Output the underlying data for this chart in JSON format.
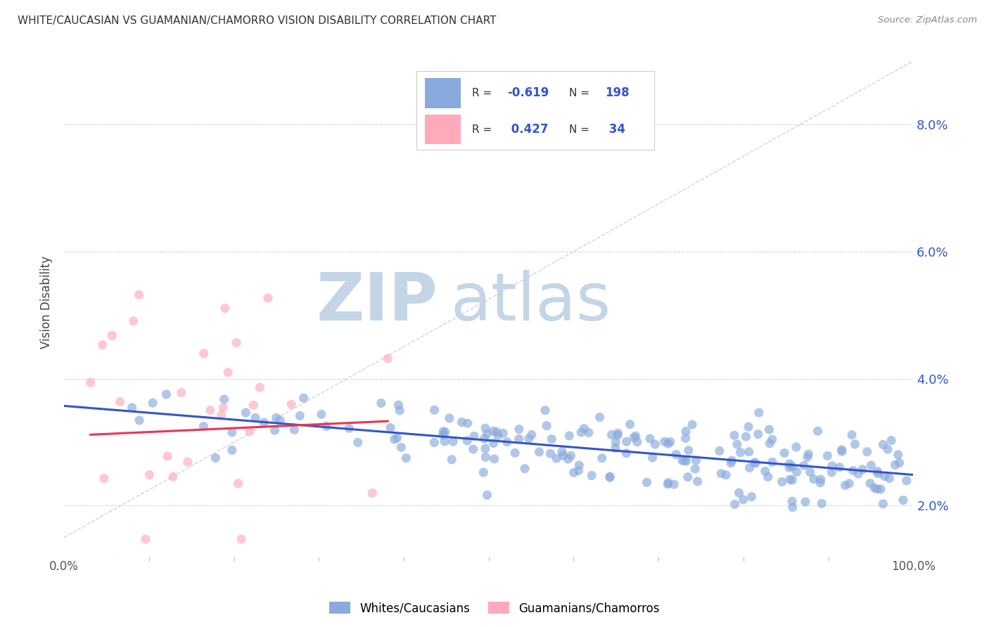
{
  "title": "WHITE/CAUCASIAN VS GUAMANIAN/CHAMORRO VISION DISABILITY CORRELATION CHART",
  "source": "Source: ZipAtlas.com",
  "ylabel": "Vision Disability",
  "blue_R": -0.619,
  "blue_N": 198,
  "pink_R": 0.427,
  "pink_N": 34,
  "blue_color": "#88AADD",
  "pink_color": "#FFAABB",
  "blue_line_color": "#3355CC",
  "pink_line_color": "#EE3355",
  "diag_color": "#CCCCCC",
  "legend_blue_label": "Whites/Caucasians",
  "legend_pink_label": "Guamanians/Chamorros",
  "xlim": [
    0,
    100
  ],
  "ylim": [
    1.2,
    9.2
  ],
  "ytick_labels": [
    "2.0%",
    "4.0%",
    "6.0%",
    "8.0%"
  ],
  "ytick_values": [
    2.0,
    4.0,
    6.0,
    8.0
  ],
  "xtick_left_label": "0.0%",
  "xtick_right_label": "100.0%",
  "background_color": "#FFFFFF",
  "grid_color": "#CCCCCC",
  "watermark_zip": "ZIP",
  "watermark_atlas": "atlas",
  "watermark_color": "#C5D5E8",
  "legend_box_color": "#DDDDDD",
  "r_n_color": "#3355CC",
  "r_label_color": "#333333"
}
